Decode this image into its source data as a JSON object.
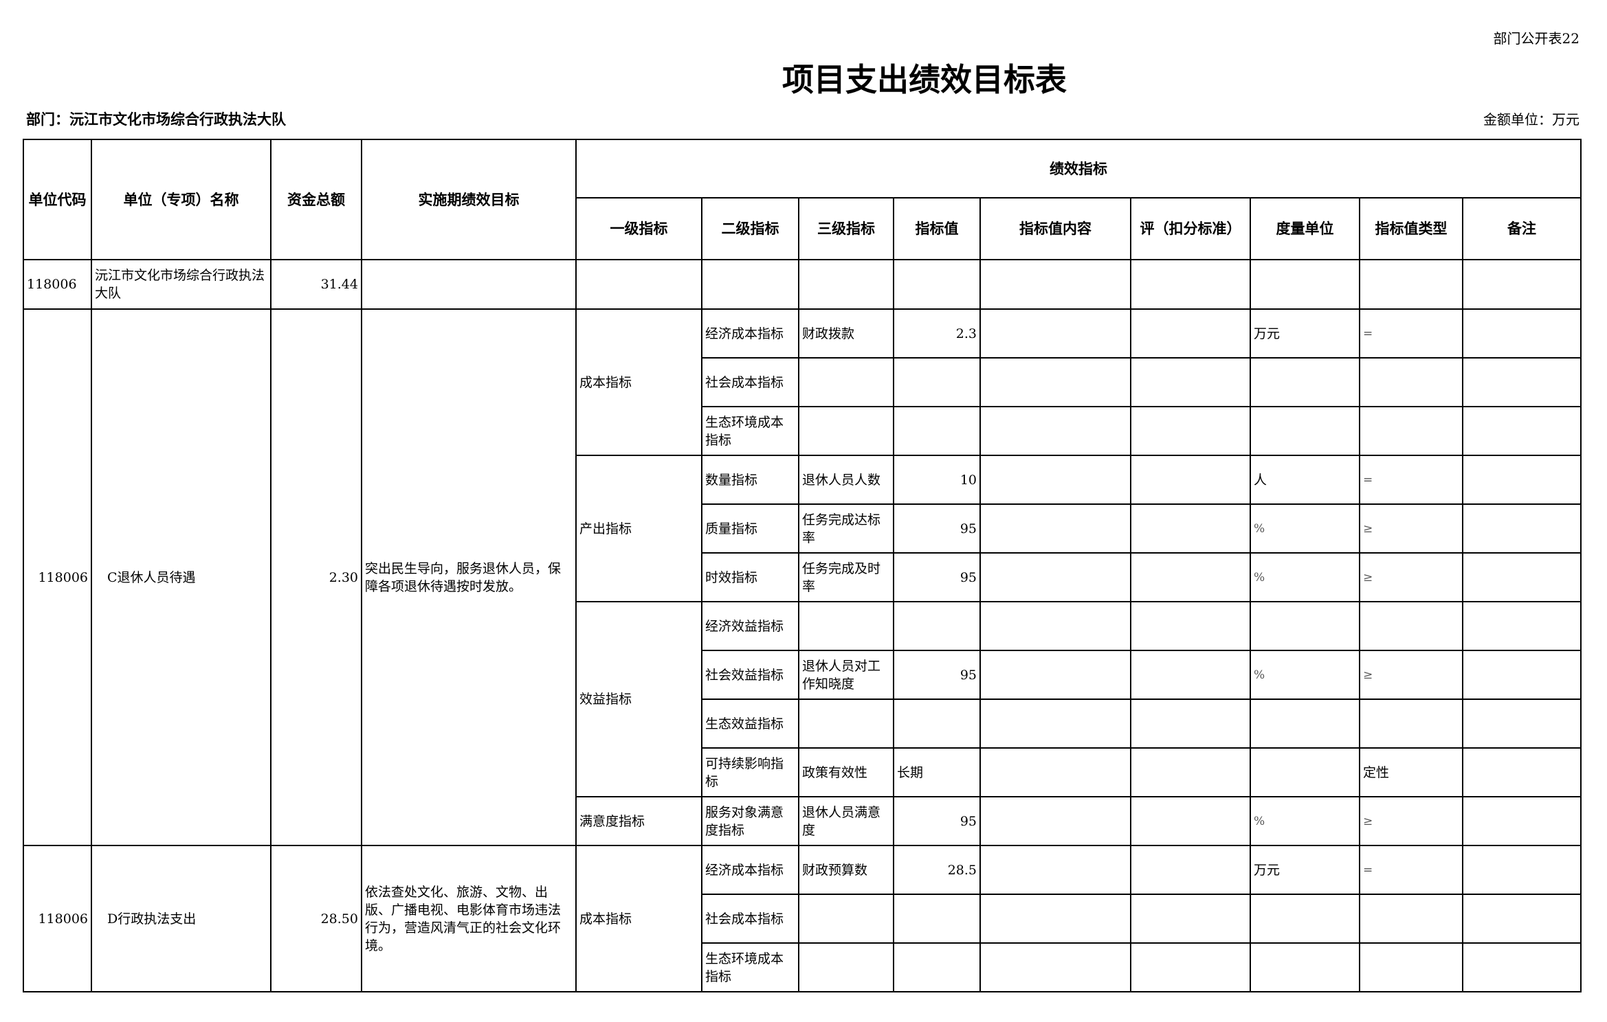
{
  "form_no": "部门公开表22",
  "title": "项目支出绩效目标表",
  "department": "部门：沅江市文化市场综合行政执法大队",
  "amount_unit": "金额单位：万元",
  "headers": {
    "code": "单位代码",
    "name": "单位（专项）名称",
    "amount": "资金总额",
    "goal": "实施期绩效目标",
    "indicators": "绩效指标",
    "level1": "一级指标",
    "level2": "二级指标",
    "level3": "三级指标",
    "value": "指标值",
    "content": "指标值内容",
    "score": "评（扣分标准）",
    "unit": "度量单位",
    "type": "指标值类型",
    "note": "备注"
  },
  "summary": {
    "code": "118006",
    "name": "沅江市文化市场综合行政执法大队",
    "amount": "31.44"
  },
  "blocks": [
    {
      "code": "118006",
      "name": "C退休人员待遇",
      "amount": "2.30",
      "goal": "突出民生导向，服务退休人员，保障各项退休待遇按时发放。",
      "groups": [
        {
          "level1": "成本指标",
          "items": [
            {
              "level2": "经济成本指标",
              "level3": "财政拨款",
              "value": "2.3",
              "unit": "万元",
              "type": "="
            },
            {
              "level2": "社会成本指标"
            },
            {
              "level2": "生态环境成本指标"
            }
          ]
        },
        {
          "level1": "产出指标",
          "items": [
            {
              "level2": "数量指标",
              "level3": "退休人员人数",
              "value": "10",
              "unit": "人",
              "type": "="
            },
            {
              "level2": "质量指标",
              "level3": "任务完成达标率",
              "value": "95",
              "unit": "%",
              "type": "≥"
            },
            {
              "level2": "时效指标",
              "level3": "任务完成及时率",
              "value": "95",
              "unit": "%",
              "type": "≥"
            }
          ]
        },
        {
          "level1": "效益指标",
          "items": [
            {
              "level2": "经济效益指标"
            },
            {
              "level2": "社会效益指标",
              "level3": "退休人员对工作知晓度",
              "value": "95",
              "unit": "%",
              "type": "≥"
            },
            {
              "level2": "生态效益指标"
            },
            {
              "level2": "可持续影响指标",
              "level3": "政策有效性",
              "value": "长期",
              "type": "定性"
            }
          ]
        },
        {
          "level1": "满意度指标",
          "items": [
            {
              "level2": "服务对象满意度指标",
              "level3": "退休人员满意度",
              "value": "95",
              "unit": "%",
              "type": "≥"
            }
          ]
        }
      ]
    },
    {
      "code": "118006",
      "name": "D行政执法支出",
      "amount": "28.50",
      "goal": "依法查处文化、旅游、文物、出版、广播电视、电影体育市场违法行为，营造风清气正的社会文化环境。",
      "groups": [
        {
          "level1": "成本指标",
          "items": [
            {
              "level2": "经济成本指标",
              "level3": "财政预算数",
              "value": "28.5",
              "unit": "万元",
              "type": "="
            },
            {
              "level2": "社会成本指标"
            },
            {
              "level2": "生态环境成本指标"
            }
          ]
        }
      ]
    }
  ]
}
